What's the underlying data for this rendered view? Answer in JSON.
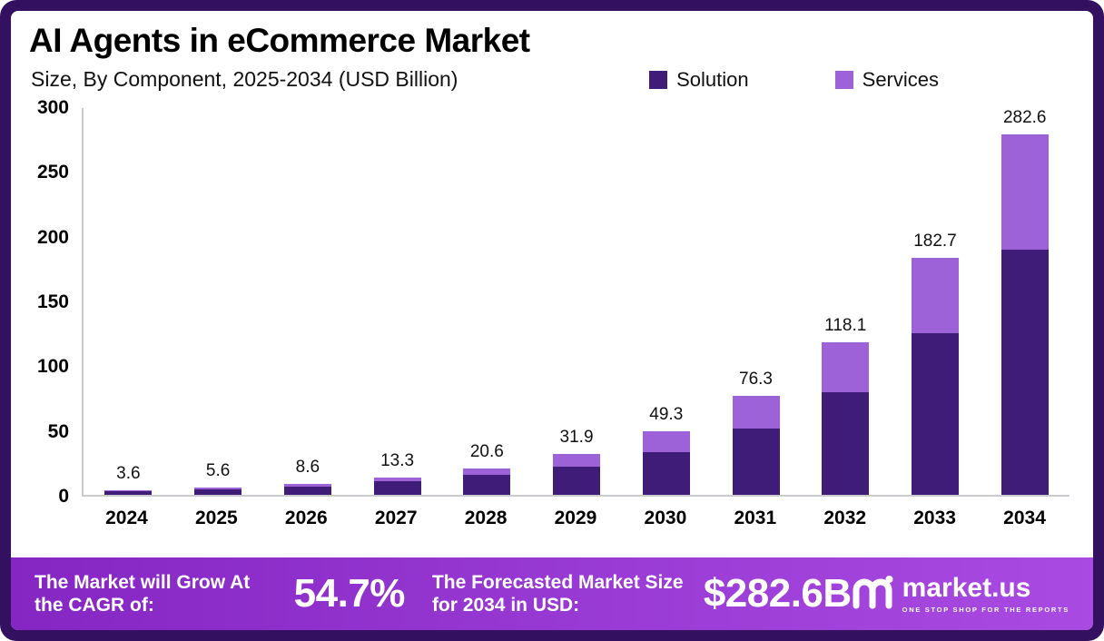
{
  "title": "AI Agents in eCommerce Market",
  "subtitle": "Size, By Component, 2025-2034 (USD Billion)",
  "legend": [
    {
      "label": "Solution",
      "color": "#3e1c78"
    },
    {
      "label": "Services",
      "color": "#9e62d8"
    }
  ],
  "chart_data": {
    "type": "bar",
    "stacked": true,
    "title": "AI Agents in eCommerce Market Size, By Component, 2025-2034 (USD Billion)",
    "categories": [
      "2024",
      "2025",
      "2026",
      "2027",
      "2028",
      "2029",
      "2030",
      "2031",
      "2032",
      "2033",
      "2034"
    ],
    "series": [
      {
        "name": "Solution",
        "color": "#3e1c78",
        "values": [
          2.9,
          4.4,
          6.6,
          10.2,
          15.6,
          22.0,
          33.0,
          51.0,
          79.0,
          125.0,
          192.0
        ]
      },
      {
        "name": "Services",
        "color": "#9e62d8",
        "values": [
          0.7,
          1.2,
          2.0,
          3.1,
          5.0,
          9.9,
          16.3,
          25.3,
          39.1,
          57.7,
          90.6
        ]
      }
    ],
    "totals": [
      "3.6",
      "5.6",
      "8.6",
      "13.3",
      "20.6",
      "31.9",
      "49.3",
      "76.3",
      "118.1",
      "182.7",
      "282.6"
    ],
    "xlabel": "",
    "ylabel": "",
    "ylim": [
      0,
      300
    ],
    "yticks": [
      0,
      50,
      100,
      150,
      200,
      250,
      300
    ],
    "grid": false,
    "legend_position": "top"
  },
  "footer": {
    "cagr_label": "The Market will Grow At the CAGR of:",
    "cagr_value": "54.7%",
    "forecast_label": "The Forecasted Market Size for 2034 in USD:",
    "forecast_value": "$282.6B",
    "brand": "market.us",
    "brand_tagline": "ONE STOP SHOP FOR THE REPORTS"
  }
}
